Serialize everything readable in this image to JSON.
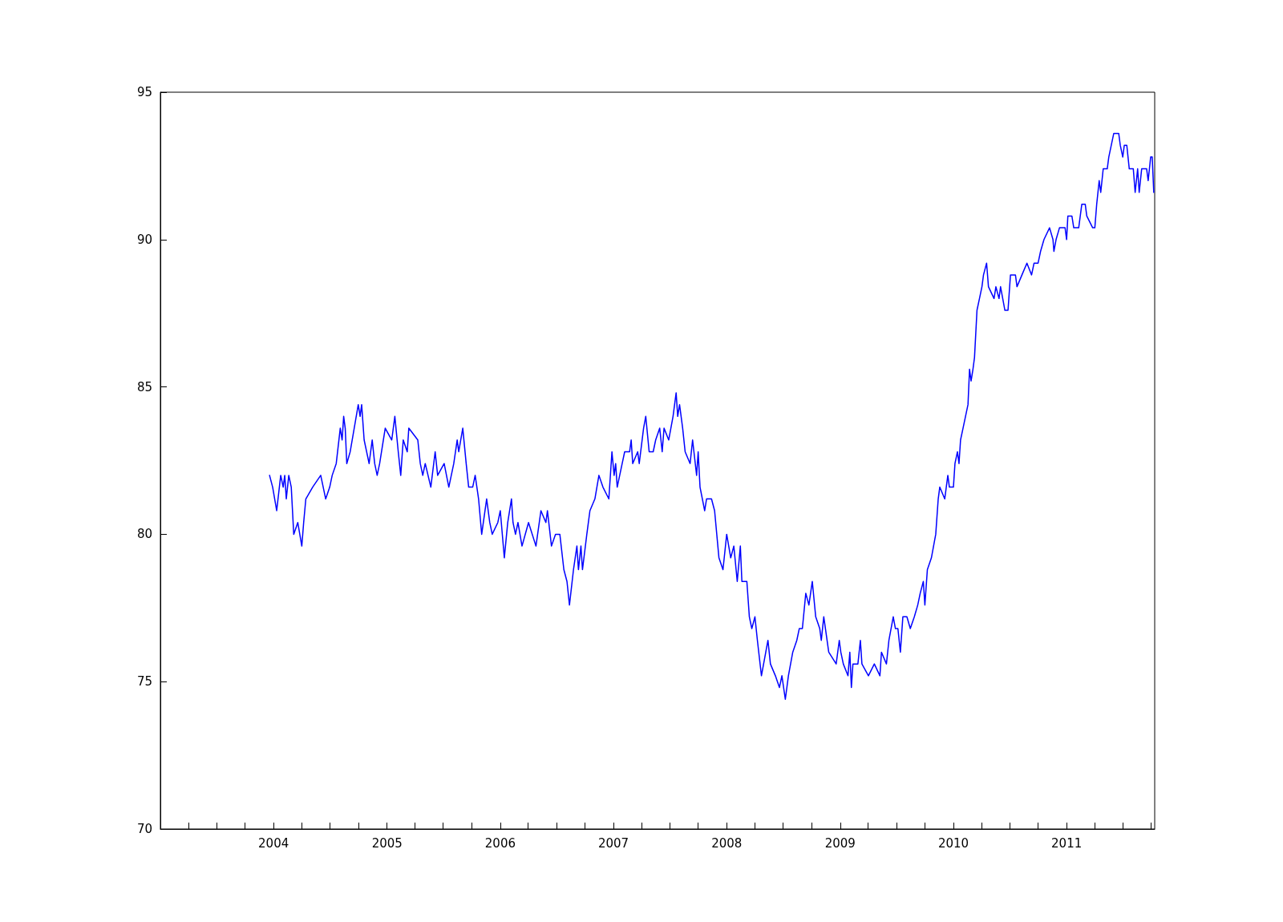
{
  "chart_data": {
    "type": "line",
    "xlim": [
      "2003-01-01",
      "2011-10-12"
    ],
    "xticks": [
      {
        "value": "2003-04-01",
        "label": null
      },
      {
        "value": "2003-07-01",
        "label": null
      },
      {
        "value": "2003-10-01",
        "label": null
      },
      {
        "value": "2004-01-01",
        "label": "2004"
      },
      {
        "value": "2004-04-01",
        "label": null
      },
      {
        "value": "2004-07-01",
        "label": null
      },
      {
        "value": "2004-10-01",
        "label": null
      },
      {
        "value": "2005-01-01",
        "label": "2005"
      },
      {
        "value": "2005-04-01",
        "label": null
      },
      {
        "value": "2005-07-01",
        "label": null
      },
      {
        "value": "2005-10-01",
        "label": null
      },
      {
        "value": "2006-01-01",
        "label": "2006"
      },
      {
        "value": "2006-04-01",
        "label": null
      },
      {
        "value": "2006-07-01",
        "label": null
      },
      {
        "value": "2006-10-01",
        "label": null
      },
      {
        "value": "2007-01-01",
        "label": "2007"
      },
      {
        "value": "2007-04-01",
        "label": null
      },
      {
        "value": "2007-07-01",
        "label": null
      },
      {
        "value": "2007-10-01",
        "label": null
      },
      {
        "value": "2008-01-01",
        "label": "2008"
      },
      {
        "value": "2008-04-01",
        "label": null
      },
      {
        "value": "2008-07-01",
        "label": null
      },
      {
        "value": "2008-10-01",
        "label": null
      },
      {
        "value": "2009-01-01",
        "label": "2009"
      },
      {
        "value": "2009-04-01",
        "label": null
      },
      {
        "value": "2009-07-01",
        "label": null
      },
      {
        "value": "2009-10-01",
        "label": null
      },
      {
        "value": "2010-01-01",
        "label": "2010"
      },
      {
        "value": "2010-04-01",
        "label": null
      },
      {
        "value": "2010-07-01",
        "label": null
      },
      {
        "value": "2010-10-01",
        "label": null
      },
      {
        "value": "2011-01-01",
        "label": "2011"
      },
      {
        "value": "2011-04-01",
        "label": null
      },
      {
        "value": "2011-07-01",
        "label": null
      },
      {
        "value": "2011-10-01",
        "label": null
      }
    ],
    "ylim": [
      70,
      95
    ],
    "yticks": [
      70,
      75,
      80,
      85,
      90,
      95
    ],
    "grid": false,
    "marker": "none",
    "line_style": "solid",
    "series": [
      {
        "color": "#0000ff",
        "x": [
          "2003-12-19",
          "2003-12-29",
          "2004-01-11",
          "2004-01-24",
          "2004-02-01",
          "2004-02-06",
          "2004-02-11",
          "2004-02-19",
          "2004-02-27",
          "2004-03-06",
          "2004-03-19",
          "2004-04-01",
          "2004-04-07",
          "2004-04-14",
          "2004-05-06",
          "2004-06-01",
          "2004-06-09",
          "2004-06-17",
          "2004-06-30",
          "2004-07-08",
          "2004-07-21",
          "2004-08-03",
          "2004-08-09",
          "2004-08-14",
          "2004-08-19",
          "2004-08-24",
          "2004-09-04",
          "2004-09-17",
          "2004-09-30",
          "2004-10-06",
          "2004-10-11",
          "2004-10-19",
          "2004-11-04",
          "2004-11-14",
          "2004-11-22",
          "2004-11-30",
          "2004-12-08",
          "2004-12-26",
          "2005-01-16",
          "2005-01-26",
          "2005-02-06",
          "2005-02-14",
          "2005-02-22",
          "2005-03-07",
          "2005-03-12",
          "2005-04-10",
          "2005-04-18",
          "2005-04-26",
          "2005-05-04",
          "2005-05-22",
          "2005-06-05",
          "2005-06-13",
          "2005-07-04",
          "2005-07-19",
          "2005-08-04",
          "2005-08-15",
          "2005-08-20",
          "2005-09-02",
          "2005-09-13",
          "2005-09-21",
          "2005-10-04",
          "2005-10-12",
          "2005-10-23",
          "2005-11-02",
          "2005-11-18",
          "2005-11-28",
          "2005-12-06",
          "2005-12-24",
          "2006-01-01",
          "2006-01-14",
          "2006-01-25",
          "2006-02-06",
          "2006-02-11",
          "2006-02-19",
          "2006-02-27",
          "2006-03-12",
          "2006-04-02",
          "2006-04-26",
          "2006-05-12",
          "2006-05-28",
          "2006-06-02",
          "2006-06-15",
          "2006-06-28",
          "2006-07-12",
          "2006-07-25",
          "2006-08-04",
          "2006-08-12",
          "2006-08-25",
          "2006-09-05",
          "2006-09-10",
          "2006-09-18",
          "2006-09-23",
          "2006-10-07",
          "2006-10-12",
          "2006-10-17",
          "2006-11-02",
          "2006-11-15",
          "2006-11-28",
          "2006-12-17",
          "2006-12-27",
          "2007-01-03",
          "2007-01-08",
          "2007-01-13",
          "2007-01-29",
          "2007-02-06",
          "2007-02-22",
          "2007-02-27",
          "2007-03-04",
          "2007-03-20",
          "2007-03-25",
          "2007-04-08",
          "2007-04-15",
          "2007-04-26",
          "2007-05-09",
          "2007-05-17",
          "2007-05-30",
          "2007-06-07",
          "2007-06-13",
          "2007-06-28",
          "2007-07-12",
          "2007-07-22",
          "2007-07-27",
          "2007-08-02",
          "2007-08-12",
          "2007-08-20",
          "2007-09-05",
          "2007-09-13",
          "2007-09-26",
          "2007-10-01",
          "2007-10-07",
          "2007-10-22",
          "2007-10-28",
          "2007-11-13",
          "2007-11-23",
          "2007-12-07",
          "2007-12-20",
          "2008-01-01",
          "2008-01-14",
          "2008-01-24",
          "2008-02-04",
          "2008-02-14",
          "2008-02-19",
          "2008-03-06",
          "2008-03-14",
          "2008-03-22",
          "2008-04-01",
          "2008-04-09",
          "2008-04-22",
          "2008-05-06",
          "2008-05-13",
          "2008-05-21",
          "2008-06-06",
          "2008-06-19",
          "2008-06-27",
          "2008-07-08",
          "2008-07-18",
          "2008-08-01",
          "2008-08-14",
          "2008-08-22",
          "2008-09-01",
          "2008-09-12",
          "2008-09-22",
          "2008-10-03",
          "2008-10-14",
          "2008-10-27",
          "2008-11-01",
          "2008-11-09",
          "2008-11-25",
          "2008-12-19",
          "2008-12-29",
          "2009-01-03",
          "2009-01-11",
          "2009-01-26",
          "2009-02-01",
          "2009-02-06",
          "2009-02-11",
          "2009-02-27",
          "2009-03-07",
          "2009-03-12",
          "2009-04-02",
          "2009-04-21",
          "2009-05-09",
          "2009-05-14",
          "2009-05-30",
          "2009-06-07",
          "2009-06-21",
          "2009-06-28",
          "2009-07-06",
          "2009-07-14",
          "2009-07-22",
          "2009-08-04",
          "2009-08-15",
          "2009-08-28",
          "2009-09-08",
          "2009-09-16",
          "2009-09-26",
          "2009-10-01",
          "2009-10-09",
          "2009-10-22",
          "2009-11-05",
          "2009-11-13",
          "2009-11-18",
          "2009-12-04",
          "2009-12-14",
          "2009-12-19",
          "2010-01-01",
          "2010-01-06",
          "2010-01-14",
          "2010-01-19",
          "2010-01-24",
          "2010-02-01",
          "2010-02-09",
          "2010-02-17",
          "2010-02-22",
          "2010-02-27",
          "2010-03-05",
          "2010-03-10",
          "2010-03-18",
          "2010-03-26",
          "2010-04-03",
          "2010-04-08",
          "2010-04-18",
          "2010-04-24",
          "2010-05-12",
          "2010-05-18",
          "2010-05-28",
          "2010-06-02",
          "2010-06-16",
          "2010-06-26",
          "2010-07-04",
          "2010-07-20",
          "2010-07-25",
          "2010-08-10",
          "2010-08-26",
          "2010-09-10",
          "2010-09-18",
          "2010-10-01",
          "2010-10-09",
          "2010-10-20",
          "2010-11-07",
          "2010-11-18",
          "2010-11-21",
          "2010-11-28",
          "2010-12-09",
          "2010-12-27",
          "2011-01-01",
          "2011-01-05",
          "2011-01-18",
          "2011-01-24",
          "2011-02-09",
          "2011-02-19",
          "2011-03-02",
          "2011-03-07",
          "2011-03-26",
          "2011-04-02",
          "2011-04-08",
          "2011-04-16",
          "2011-04-21",
          "2011-04-29",
          "2011-05-12",
          "2011-05-17",
          "2011-05-25",
          "2011-06-02",
          "2011-06-18",
          "2011-06-23",
          "2011-07-01",
          "2011-07-06",
          "2011-07-14",
          "2011-07-22",
          "2011-08-04",
          "2011-08-10",
          "2011-08-18",
          "2011-08-23",
          "2011-08-31",
          "2011-09-16",
          "2011-09-21",
          "2011-09-29",
          "2011-10-04",
          "2011-10-09"
        ],
        "values": [
          82.0,
          81.6,
          80.8,
          82.0,
          81.6,
          82.0,
          81.2,
          82.0,
          81.6,
          80.0,
          80.4,
          79.6,
          80.4,
          81.2,
          81.6,
          82.0,
          81.6,
          81.2,
          81.6,
          82.0,
          82.4,
          83.6,
          83.2,
          84.0,
          83.6,
          82.4,
          82.8,
          83.6,
          84.4,
          84.0,
          84.4,
          83.2,
          82.4,
          83.2,
          82.4,
          82.0,
          82.4,
          83.6,
          83.2,
          84.0,
          82.8,
          82.0,
          83.2,
          82.8,
          83.6,
          83.2,
          82.4,
          82.0,
          82.4,
          81.6,
          82.8,
          82.0,
          82.4,
          81.6,
          82.4,
          83.2,
          82.8,
          83.6,
          82.4,
          81.6,
          81.6,
          82.0,
          81.2,
          80.0,
          81.2,
          80.4,
          80.0,
          80.4,
          80.8,
          79.2,
          80.4,
          81.2,
          80.4,
          80.0,
          80.4,
          79.6,
          80.4,
          79.6,
          80.8,
          80.4,
          80.8,
          79.6,
          80.0,
          80.0,
          78.8,
          78.4,
          77.6,
          78.8,
          79.6,
          78.8,
          79.6,
          78.8,
          80.0,
          80.4,
          80.8,
          81.2,
          82.0,
          81.6,
          81.2,
          82.8,
          82.0,
          82.4,
          81.6,
          82.4,
          82.8,
          82.8,
          83.2,
          82.4,
          82.8,
          82.4,
          83.6,
          84.0,
          82.8,
          82.8,
          83.2,
          83.6,
          82.8,
          83.6,
          83.2,
          84.0,
          84.8,
          84.0,
          84.4,
          83.6,
          82.8,
          82.4,
          83.2,
          82.0,
          82.8,
          81.6,
          80.8,
          81.2,
          81.2,
          80.8,
          79.2,
          78.8,
          80.0,
          79.2,
          79.6,
          78.4,
          79.6,
          78.4,
          78.4,
          77.2,
          76.8,
          77.2,
          76.4,
          75.2,
          76.0,
          76.4,
          75.6,
          75.2,
          74.8,
          75.2,
          74.4,
          75.2,
          76.0,
          76.4,
          76.8,
          76.8,
          78.0,
          77.6,
          78.4,
          77.2,
          76.8,
          76.4,
          77.2,
          76.0,
          75.6,
          76.4,
          76.0,
          75.6,
          75.2,
          76.0,
          74.8,
          75.6,
          75.6,
          76.4,
          75.6,
          75.2,
          75.6,
          75.2,
          76.0,
          75.6,
          76.4,
          77.2,
          76.8,
          76.8,
          76.0,
          77.2,
          77.2,
          76.8,
          77.2,
          77.6,
          78.0,
          78.4,
          77.6,
          78.8,
          79.2,
          80.0,
          81.2,
          81.6,
          81.2,
          82.0,
          81.6,
          81.6,
          82.4,
          82.8,
          82.4,
          83.2,
          83.6,
          84.0,
          84.4,
          85.6,
          85.2,
          85.6,
          86.0,
          87.6,
          88.0,
          88.4,
          88.8,
          89.2,
          88.4,
          88.0,
          88.4,
          88.0,
          88.4,
          87.6,
          87.6,
          88.8,
          88.8,
          88.4,
          88.8,
          89.2,
          88.8,
          89.2,
          89.2,
          89.6,
          90.0,
          90.4,
          90.0,
          89.6,
          90.0,
          90.4,
          90.4,
          90.0,
          90.8,
          90.8,
          90.4,
          90.4,
          91.2,
          91.2,
          90.8,
          90.4,
          90.4,
          91.2,
          92.0,
          91.6,
          92.4,
          92.4,
          92.8,
          93.2,
          93.6,
          93.6,
          93.2,
          92.8,
          93.2,
          93.2,
          92.4,
          92.4,
          91.6,
          92.4,
          91.6,
          92.4,
          92.4,
          92.0,
          92.8,
          92.8,
          91.6
        ]
      }
    ]
  }
}
